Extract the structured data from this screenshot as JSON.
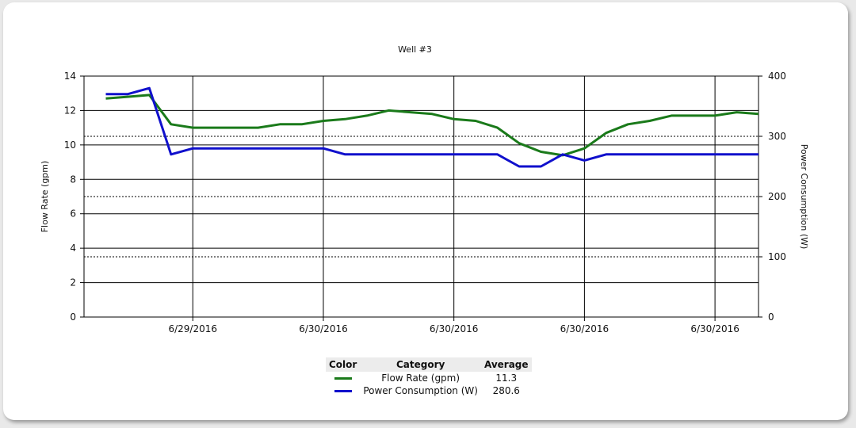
{
  "chart_data": {
    "type": "line",
    "title": "Well #3",
    "ylabel": "Flow Rate (gpm)",
    "y2label": "Power Consumption (W)",
    "ylim": [
      0,
      14
    ],
    "y2lim": [
      0,
      400
    ],
    "yticks": [
      0,
      2,
      4,
      6,
      8,
      10,
      12,
      14
    ],
    "y2ticks": [
      0,
      100,
      200,
      300,
      400
    ],
    "xlim": [
      0,
      31
    ],
    "xticks": [
      {
        "x": 5,
        "label": "6/29/2016"
      },
      {
        "x": 11,
        "label": "6/30/2016"
      },
      {
        "x": 17,
        "label": "6/30/2016"
      },
      {
        "x": 23,
        "label": "6/30/2016"
      },
      {
        "x": 29,
        "label": "6/30/2016"
      }
    ],
    "grid": true,
    "legend_position": "bottom",
    "series": [
      {
        "name": "Flow Rate (gpm)",
        "axis": "left",
        "color": "#1a7a1a",
        "x": [
          1,
          2,
          3,
          4,
          5,
          6,
          7,
          8,
          9,
          10,
          11,
          12,
          13,
          14,
          15,
          16,
          17,
          18,
          19,
          20,
          21,
          22,
          23,
          24,
          25,
          26,
          27,
          28,
          29,
          30,
          31
        ],
        "values": [
          12.7,
          12.8,
          12.9,
          11.2,
          11.0,
          11.0,
          11.0,
          11.0,
          11.2,
          11.2,
          11.4,
          11.5,
          11.7,
          12.0,
          11.9,
          11.8,
          11.5,
          11.4,
          11.0,
          10.1,
          9.6,
          9.4,
          9.8,
          10.7,
          11.2,
          11.4,
          11.7,
          11.7,
          11.7,
          11.9,
          11.8
        ]
      },
      {
        "name": "Power Consumption (W)",
        "axis": "right",
        "color": "#1010cc",
        "x": [
          1,
          2,
          3,
          4,
          5,
          6,
          7,
          8,
          9,
          10,
          11,
          12,
          13,
          14,
          15,
          16,
          17,
          18,
          19,
          20,
          21,
          22,
          23,
          24,
          25,
          26,
          27,
          28,
          29,
          30,
          31
        ],
        "values": [
          370,
          370,
          380,
          270,
          280,
          280,
          280,
          280,
          280,
          280,
          280,
          270,
          270,
          270,
          270,
          270,
          270,
          270,
          270,
          250,
          250,
          270,
          260,
          270,
          270,
          270,
          270,
          270,
          270,
          270,
          270
        ]
      }
    ]
  },
  "legend": {
    "headers": {
      "color": "Color",
      "category": "Category",
      "average": "Average"
    },
    "rows": [
      {
        "color": "#1a7a1a",
        "category": "Flow Rate (gpm)",
        "average": "11.3"
      },
      {
        "color": "#1010cc",
        "category": "Power Consumption (W)",
        "average": "280.6"
      }
    ]
  }
}
